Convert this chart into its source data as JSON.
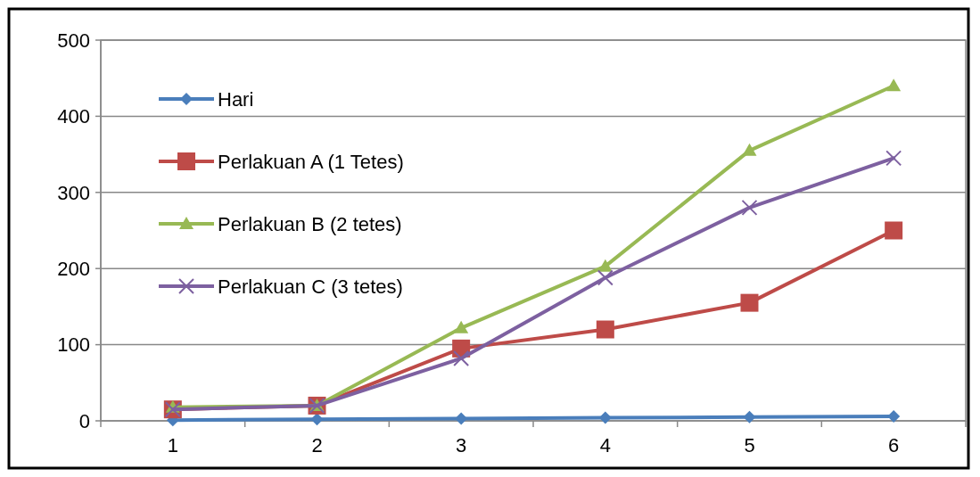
{
  "chart_data": {
    "type": "line",
    "categories": [
      "1",
      "2",
      "3",
      "4",
      "5",
      "6"
    ],
    "ylim": [
      0,
      500
    ],
    "yticks": [
      0,
      100,
      200,
      300,
      400,
      500
    ],
    "grid": "y",
    "legend": "top left",
    "line_style": "solid",
    "series": [
      {
        "name": "Hari",
        "color": "#4a7ebb",
        "marker": "diamond",
        "values": [
          1,
          2,
          3,
          4,
          5,
          6
        ]
      },
      {
        "name": "Perlakuan A (1 Tetes)",
        "color": "#be4b48",
        "marker": "square",
        "values": [
          15,
          20,
          95,
          120,
          155,
          250
        ]
      },
      {
        "name": "Perlakuan B (2 tetes)",
        "color": "#98b954",
        "marker": "triangle",
        "values": [
          18,
          20,
          122,
          203,
          355,
          440
        ]
      },
      {
        "name": "Perlakuan C (3 tetes)",
        "color": "#7d60a0",
        "marker": "cross",
        "values": [
          15,
          20,
          82,
          188,
          280,
          345
        ]
      }
    ]
  }
}
